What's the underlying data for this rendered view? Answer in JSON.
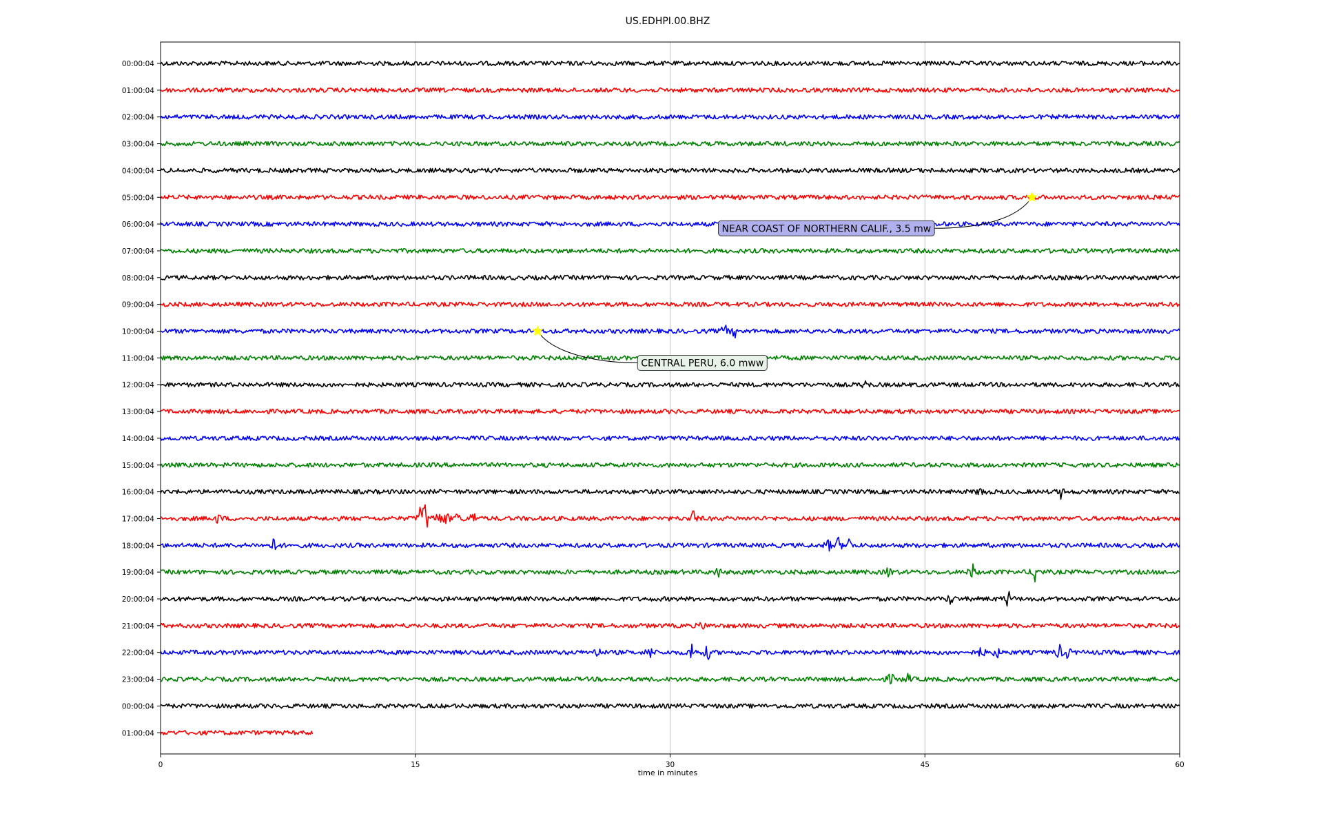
{
  "chart_data": {
    "type": "line",
    "title": "US.EDHPI.00.BHZ",
    "xlabel": "time in minutes",
    "ylabel": "",
    "xlim": [
      0,
      60
    ],
    "x_ticks": [
      0,
      15,
      30,
      45,
      60
    ],
    "x_tick_labels": [
      "0",
      "15",
      "30",
      "45",
      "60"
    ],
    "grid": "vertical at x ticks",
    "row_labels": [
      "00:00:04",
      "01:00:04",
      "02:00:04",
      "03:00:04",
      "04:00:04",
      "05:00:04",
      "06:00:04",
      "07:00:04",
      "08:00:04",
      "09:00:04",
      "10:00:04",
      "11:00:04",
      "12:00:04",
      "13:00:04",
      "14:00:04",
      "15:00:04",
      "16:00:04",
      "17:00:04",
      "18:00:04",
      "19:00:04",
      "20:00:04",
      "21:00:04",
      "22:00:04",
      "23:00:04",
      "00:00:04",
      "01:00:04"
    ],
    "trace_colors": [
      "#000000",
      "#ff0000",
      "#0000ff",
      "#008000"
    ],
    "row_end_minutes": [
      60,
      60,
      60,
      60,
      60,
      60,
      60,
      60,
      60,
      60,
      60,
      60,
      60,
      60,
      60,
      60,
      60,
      60,
      60,
      60,
      60,
      60,
      60,
      60,
      60,
      9
    ],
    "bursts": [
      {
        "row": 10,
        "minute": 33.2,
        "amplitude": 1.4
      },
      {
        "row": 10,
        "minute": 33.8,
        "amplitude": 1.0
      },
      {
        "row": 12,
        "minute": 41.5,
        "amplitude": 0.7
      },
      {
        "row": 16,
        "minute": 48.3,
        "amplitude": 1.0
      },
      {
        "row": 16,
        "minute": 53.0,
        "amplitude": 0.9
      },
      {
        "row": 17,
        "minute": 3.4,
        "amplitude": 1.0
      },
      {
        "row": 17,
        "minute": 15.3,
        "amplitude": 2.2
      },
      {
        "row": 17,
        "minute": 15.6,
        "amplitude": 3.2
      },
      {
        "row": 17,
        "minute": 16.3,
        "amplitude": 1.5
      },
      {
        "row": 17,
        "minute": 16.8,
        "amplitude": 1.3
      },
      {
        "row": 17,
        "minute": 17.5,
        "amplitude": 1.2
      },
      {
        "row": 17,
        "minute": 18.4,
        "amplitude": 1.5
      },
      {
        "row": 17,
        "minute": 31.4,
        "amplitude": 1.6
      },
      {
        "row": 18,
        "minute": 6.7,
        "amplitude": 1.4
      },
      {
        "row": 18,
        "minute": 39.3,
        "amplitude": 1.1
      },
      {
        "row": 18,
        "minute": 39.9,
        "amplitude": 1.3
      },
      {
        "row": 18,
        "minute": 40.5,
        "amplitude": 1.4
      },
      {
        "row": 19,
        "minute": 32.8,
        "amplitude": 1.0
      },
      {
        "row": 19,
        "minute": 42.9,
        "amplitude": 1.1
      },
      {
        "row": 19,
        "minute": 47.8,
        "amplitude": 1.5
      },
      {
        "row": 19,
        "minute": 51.5,
        "amplitude": 2.1
      },
      {
        "row": 20,
        "minute": 46.5,
        "amplitude": 1.0
      },
      {
        "row": 20,
        "minute": 49.9,
        "amplitude": 1.6
      },
      {
        "row": 21,
        "minute": 31.9,
        "amplitude": 0.6
      },
      {
        "row": 22,
        "minute": 25.7,
        "amplitude": 1.1
      },
      {
        "row": 22,
        "minute": 28.8,
        "amplitude": 1.3
      },
      {
        "row": 22,
        "minute": 31.3,
        "amplitude": 1.8
      },
      {
        "row": 22,
        "minute": 32.2,
        "amplitude": 1.4
      },
      {
        "row": 22,
        "minute": 48.3,
        "amplitude": 1.1
      },
      {
        "row": 22,
        "minute": 49.2,
        "amplitude": 1.2
      },
      {
        "row": 22,
        "minute": 52.9,
        "amplitude": 1.4
      },
      {
        "row": 22,
        "minute": 53.4,
        "amplitude": 1.0
      },
      {
        "row": 23,
        "minute": 43.0,
        "amplitude": 1.2
      },
      {
        "row": 23,
        "minute": 44.0,
        "amplitude": 1.0
      }
    ],
    "events": [
      {
        "row": 5,
        "minute": 51.3,
        "label": "NEAR COAST OF NORTHERN CALIF., 3.5 mw",
        "box_color": "#b0b0ee",
        "marker_color": "#ffff00"
      },
      {
        "row": 10,
        "minute": 22.2,
        "label": "CENTRAL PERU, 6.0 mww",
        "box_color": "#e9f2e9",
        "marker_color": "#ffff00"
      }
    ]
  }
}
